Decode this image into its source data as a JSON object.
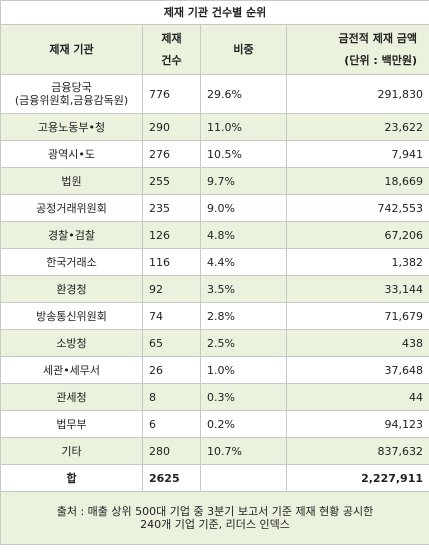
{
  "title": "제재 기관 건수별 순위",
  "headers": {
    "agency": "제재 기관",
    "count_line1": "제재",
    "count_line2": "건수",
    "share": "비중",
    "amount_line1": "금전적 제재 금액",
    "amount_line2": "(단위 : 백만원)"
  },
  "rows": [
    {
      "agency": "금융당국",
      "agency_sub": "(금융위원회,금융감독원)",
      "count": "776",
      "share": "29.6%",
      "amount": "291,830"
    },
    {
      "agency": "고용노동부•청",
      "count": "290",
      "share": "11.0%",
      "amount": "23,622"
    },
    {
      "agency": "광역시•도",
      "count": "276",
      "share": "10.5%",
      "amount": "7,941"
    },
    {
      "agency": "법원",
      "count": "255",
      "share": "9.7%",
      "amount": "18,669"
    },
    {
      "agency": "공정거래위원회",
      "count": "235",
      "share": "9.0%",
      "amount": "742,553"
    },
    {
      "agency": "경찰•검찰",
      "count": "126",
      "share": "4.8%",
      "amount": "67,206"
    },
    {
      "agency": "한국거래소",
      "count": "116",
      "share": "4.4%",
      "amount": "1,382"
    },
    {
      "agency": "환경청",
      "count": "92",
      "share": "3.5%",
      "amount": "33,144"
    },
    {
      "agency": "방송통신위원회",
      "count": "74",
      "share": "2.8%",
      "amount": "71,679"
    },
    {
      "agency": "소방청",
      "count": "65",
      "share": "2.5%",
      "amount": "438"
    },
    {
      "agency": "세관•세무서",
      "count": "26",
      "share": "1.0%",
      "amount": "37,648"
    },
    {
      "agency": "관세청",
      "count": "8",
      "share": "0.3%",
      "amount": "44"
    },
    {
      "agency": "법무부",
      "count": "6",
      "share": "0.2%",
      "amount": "94,123"
    },
    {
      "agency": "기타",
      "count": "280",
      "share": "10.7%",
      "amount": "837,632"
    }
  ],
  "total": {
    "label": "합",
    "count": "2625",
    "share": "",
    "amount": "2,227,911"
  },
  "source": {
    "line1": "출처 : 매출 상위 500대 기업 중 3분기 보고서 기준 제재 현황 공시한",
    "line2": "240개 기업 기준, 리더스 인덱스"
  }
}
